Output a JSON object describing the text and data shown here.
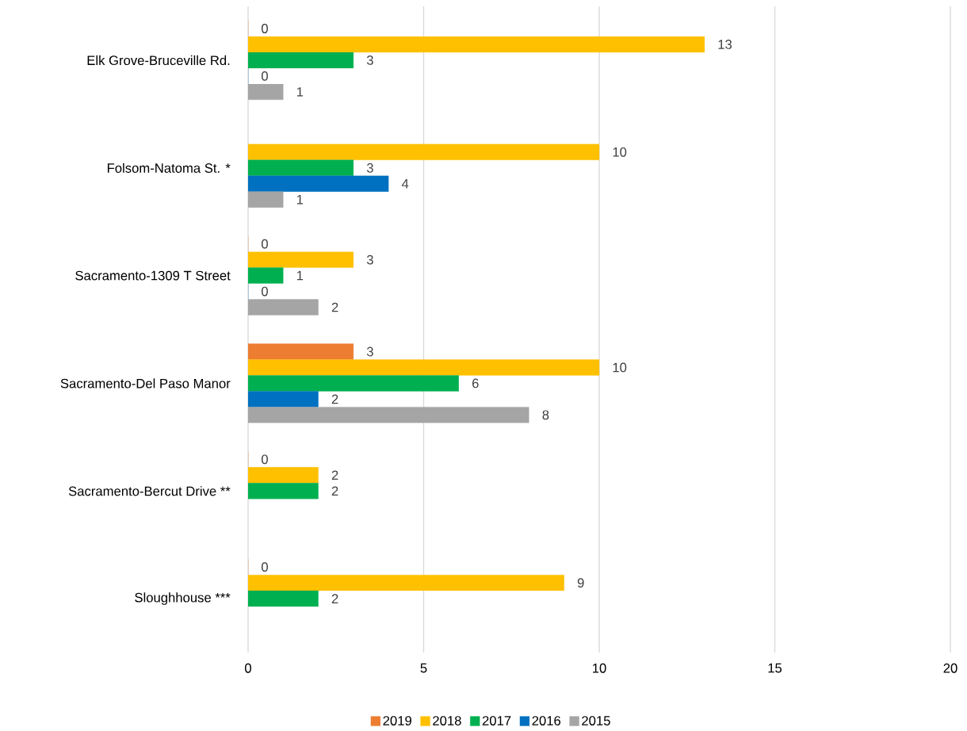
{
  "chart_data": {
    "type": "bar",
    "orientation": "horizontal",
    "categories": [
      "Elk Grove-Bruceville Rd.",
      "Folsom-Natoma St. *",
      "Sacramento-1309 T Street",
      "Sacramento-Del Paso Manor",
      "Sacramento-Bercut Drive **",
      "Sloughhouse ***"
    ],
    "series": [
      {
        "name": "2019",
        "color": "#ed7d31",
        "values": [
          0,
          null,
          0,
          3,
          0,
          0
        ]
      },
      {
        "name": "2018",
        "color": "#ffc000",
        "values": [
          13,
          10,
          3,
          10,
          2,
          9
        ]
      },
      {
        "name": "2017",
        "color": "#00b050",
        "values": [
          3,
          3,
          1,
          6,
          2,
          2
        ]
      },
      {
        "name": "2016",
        "color": "#0070c0",
        "values": [
          0,
          4,
          0,
          2,
          null,
          null
        ]
      },
      {
        "name": "2015",
        "color": "#a5a5a5",
        "values": [
          1,
          1,
          2,
          8,
          null,
          null
        ]
      }
    ],
    "xlim": [
      0,
      20
    ],
    "xticks": [
      0,
      5,
      10,
      15,
      20
    ],
    "grid": "x",
    "legend": "bottom",
    "data_labels": true
  }
}
